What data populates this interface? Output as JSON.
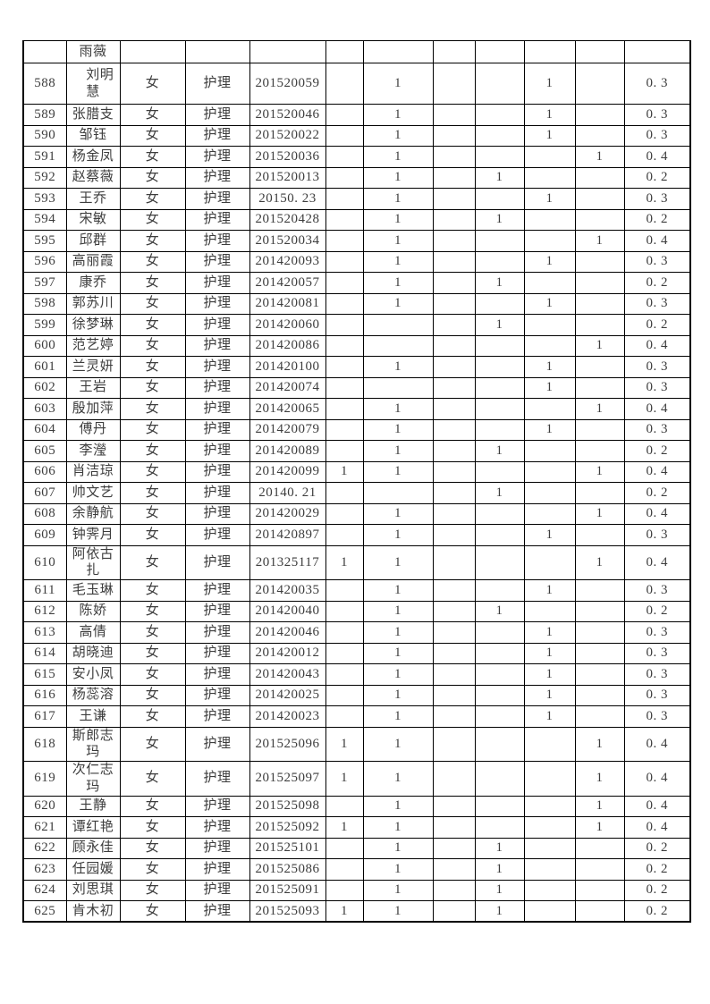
{
  "page": {
    "colors": {
      "background": "#ffffff",
      "border": "#000000",
      "text": "#3d3d3d"
    }
  },
  "table": {
    "column_keys": [
      "num",
      "name",
      "gender",
      "major",
      "id",
      "m1",
      "m2",
      "m3",
      "m4",
      "m5",
      "m6",
      "score"
    ],
    "column_names": [
      "cell-row-number",
      "cell-name",
      "cell-gender",
      "cell-major",
      "cell-student-id",
      "cell-mark-1",
      "cell-mark-2",
      "cell-mark-3",
      "cell-mark-4",
      "cell-mark-5",
      "cell-mark-6",
      "cell-score"
    ],
    "rows": [
      {
        "variant": "partial",
        "cells": [
          "",
          "雨薇",
          "",
          "",
          "",
          "",
          "",
          "",
          "",
          "",
          "",
          ""
        ]
      },
      {
        "variant": "tall",
        "cells": [
          "588",
          "　刘明\n慧",
          "女",
          "护理",
          "201520059",
          "",
          "1",
          "",
          "",
          "1",
          "",
          "0. 3"
        ]
      },
      {
        "cells": [
          "589",
          "张腊支",
          "女",
          "护理",
          "201520046",
          "",
          "1",
          "",
          "",
          "1",
          "",
          "0. 3"
        ]
      },
      {
        "cells": [
          "590",
          "邹钰",
          "女",
          "护理",
          "201520022",
          "",
          "1",
          "",
          "",
          "1",
          "",
          "0. 3"
        ]
      },
      {
        "cells": [
          "591",
          "杨金凤",
          "女",
          "护理",
          "201520036",
          "",
          "1",
          "",
          "",
          "",
          "1",
          "0. 4"
        ]
      },
      {
        "cells": [
          "592",
          "赵蔡薇",
          "女",
          "护理",
          "201520013",
          "",
          "1",
          "",
          "1",
          "",
          "",
          "0. 2"
        ]
      },
      {
        "cells": [
          "593",
          "王乔",
          "女",
          "护理",
          "20150. 23",
          "",
          "1",
          "",
          "",
          "1",
          "",
          "0. 3"
        ]
      },
      {
        "cells": [
          "594",
          "宋敏",
          "女",
          "护理",
          "201520428",
          "",
          "1",
          "",
          "1",
          "",
          "",
          "0. 2"
        ]
      },
      {
        "cells": [
          "595",
          "邱群",
          "女",
          "护理",
          "201520034",
          "",
          "1",
          "",
          "",
          "",
          "1",
          "0. 4"
        ]
      },
      {
        "cells": [
          "596",
          "高丽霞",
          "女",
          "护理",
          "201420093",
          "",
          "1",
          "",
          "",
          "1",
          "",
          "0. 3"
        ]
      },
      {
        "cells": [
          "597",
          "康乔",
          "女",
          "护理",
          "201420057",
          "",
          "1",
          "",
          "1",
          "",
          "",
          "0. 2"
        ]
      },
      {
        "cells": [
          "598",
          "郭苏川",
          "女",
          "护理",
          "201420081",
          "",
          "1",
          "",
          "",
          "1",
          "",
          "0. 3"
        ]
      },
      {
        "cells": [
          "599",
          "徐梦琳",
          "女",
          "护理",
          "201420060",
          "",
          "",
          "",
          "1",
          "",
          "",
          "0. 2"
        ]
      },
      {
        "cells": [
          "600",
          "范艺婷",
          "女",
          "护理",
          "201420086",
          "",
          "",
          "",
          "",
          "",
          "1",
          "0. 4"
        ]
      },
      {
        "cells": [
          "601",
          "兰灵妍",
          "女",
          "护理",
          "201420100",
          "",
          "1",
          "",
          "",
          "1",
          "",
          "0. 3"
        ]
      },
      {
        "cells": [
          "602",
          "王岩",
          "女",
          "护理",
          "201420074",
          "",
          "",
          "",
          "",
          "1",
          "",
          "0. 3"
        ]
      },
      {
        "cells": [
          "603",
          "殷加萍",
          "女",
          "护理",
          "201420065",
          "",
          "1",
          "",
          "",
          "",
          "1",
          "0. 4"
        ]
      },
      {
        "cells": [
          "604",
          "傅丹",
          "女",
          "护理",
          "201420079",
          "",
          "1",
          "",
          "",
          "1",
          "",
          "0. 3"
        ]
      },
      {
        "cells": [
          "605",
          "李瀅",
          "女",
          "护理",
          "201420089",
          "",
          "1",
          "",
          "1",
          "",
          "",
          "0. 2"
        ]
      },
      {
        "cells": [
          "606",
          "肖洁琼",
          "女",
          "护理",
          "201420099",
          "1",
          "1",
          "",
          "",
          "",
          "1",
          "0. 4"
        ]
      },
      {
        "cells": [
          "607",
          "帅文艺",
          "女",
          "护理",
          "20140. 21",
          "",
          "",
          "",
          "1",
          "",
          "",
          "0. 2"
        ]
      },
      {
        "cells": [
          "608",
          "余静航",
          "女",
          "护理",
          "201420029",
          "",
          "1",
          "",
          "",
          "",
          "1",
          "0. 4"
        ]
      },
      {
        "cells": [
          "609",
          "钟霁月",
          "女",
          "护理",
          "201420897",
          "",
          "1",
          "",
          "",
          "1",
          "",
          "0. 3"
        ]
      },
      {
        "cells": [
          "610",
          "阿依古扎",
          "女",
          "护理",
          "201325117",
          "1",
          "1",
          "",
          "",
          "",
          "1",
          "0. 4"
        ]
      },
      {
        "cells": [
          "611",
          "毛玉琳",
          "女",
          "护理",
          "201420035",
          "",
          "1",
          "",
          "",
          "1",
          "",
          "0. 3"
        ]
      },
      {
        "cells": [
          "612",
          "陈娇",
          "女",
          "护理",
          "201420040",
          "",
          "1",
          "",
          "1",
          "",
          "",
          "0. 2"
        ]
      },
      {
        "cells": [
          "613",
          "高倩",
          "女",
          "护理",
          "201420046",
          "",
          "1",
          "",
          "",
          "1",
          "",
          "0. 3"
        ]
      },
      {
        "cells": [
          "614",
          "胡晓迪",
          "女",
          "护理",
          "201420012",
          "",
          "1",
          "",
          "",
          "1",
          "",
          "0. 3"
        ]
      },
      {
        "cells": [
          "615",
          "安小凤",
          "女",
          "护理",
          "201420043",
          "",
          "1",
          "",
          "",
          "1",
          "",
          "0. 3"
        ]
      },
      {
        "cells": [
          "616",
          "杨蕊溶",
          "女",
          "护理",
          "201420025",
          "",
          "1",
          "",
          "",
          "1",
          "",
          "0. 3"
        ]
      },
      {
        "cells": [
          "617",
          "王谦",
          "女",
          "护理",
          "201420023",
          "",
          "1",
          "",
          "",
          "1",
          "",
          "0. 3"
        ]
      },
      {
        "cells": [
          "618",
          "斯郎志玛",
          "女",
          "护理",
          "201525096",
          "1",
          "1",
          "",
          "",
          "",
          "1",
          "0. 4"
        ]
      },
      {
        "cells": [
          "619",
          "次仁志玛",
          "女",
          "护理",
          "201525097",
          "1",
          "1",
          "",
          "",
          "",
          "1",
          "0. 4"
        ]
      },
      {
        "cells": [
          "620",
          "王静",
          "女",
          "护理",
          "201525098",
          "",
          "1",
          "",
          "",
          "",
          "1",
          "0. 4"
        ]
      },
      {
        "cells": [
          "621",
          "谭红艳",
          "女",
          "护理",
          "201525092",
          "1",
          "1",
          "",
          "",
          "",
          "1",
          "0. 4"
        ]
      },
      {
        "cells": [
          "622",
          "顾永佳",
          "女",
          "护理",
          "201525101",
          "",
          "1",
          "",
          "1",
          "",
          "",
          "0. 2"
        ]
      },
      {
        "cells": [
          "623",
          "任园媛",
          "女",
          "护理",
          "201525086",
          "",
          "1",
          "",
          "1",
          "",
          "",
          "0. 2"
        ]
      },
      {
        "cells": [
          "624",
          "刘思琪",
          "女",
          "护理",
          "201525091",
          "",
          "1",
          "",
          "1",
          "",
          "",
          "0. 2"
        ]
      },
      {
        "cells": [
          "625",
          "肯木初",
          "女",
          "护理",
          "201525093",
          "1",
          "1",
          "",
          "1",
          "",
          "",
          "0. 2"
        ]
      }
    ]
  }
}
